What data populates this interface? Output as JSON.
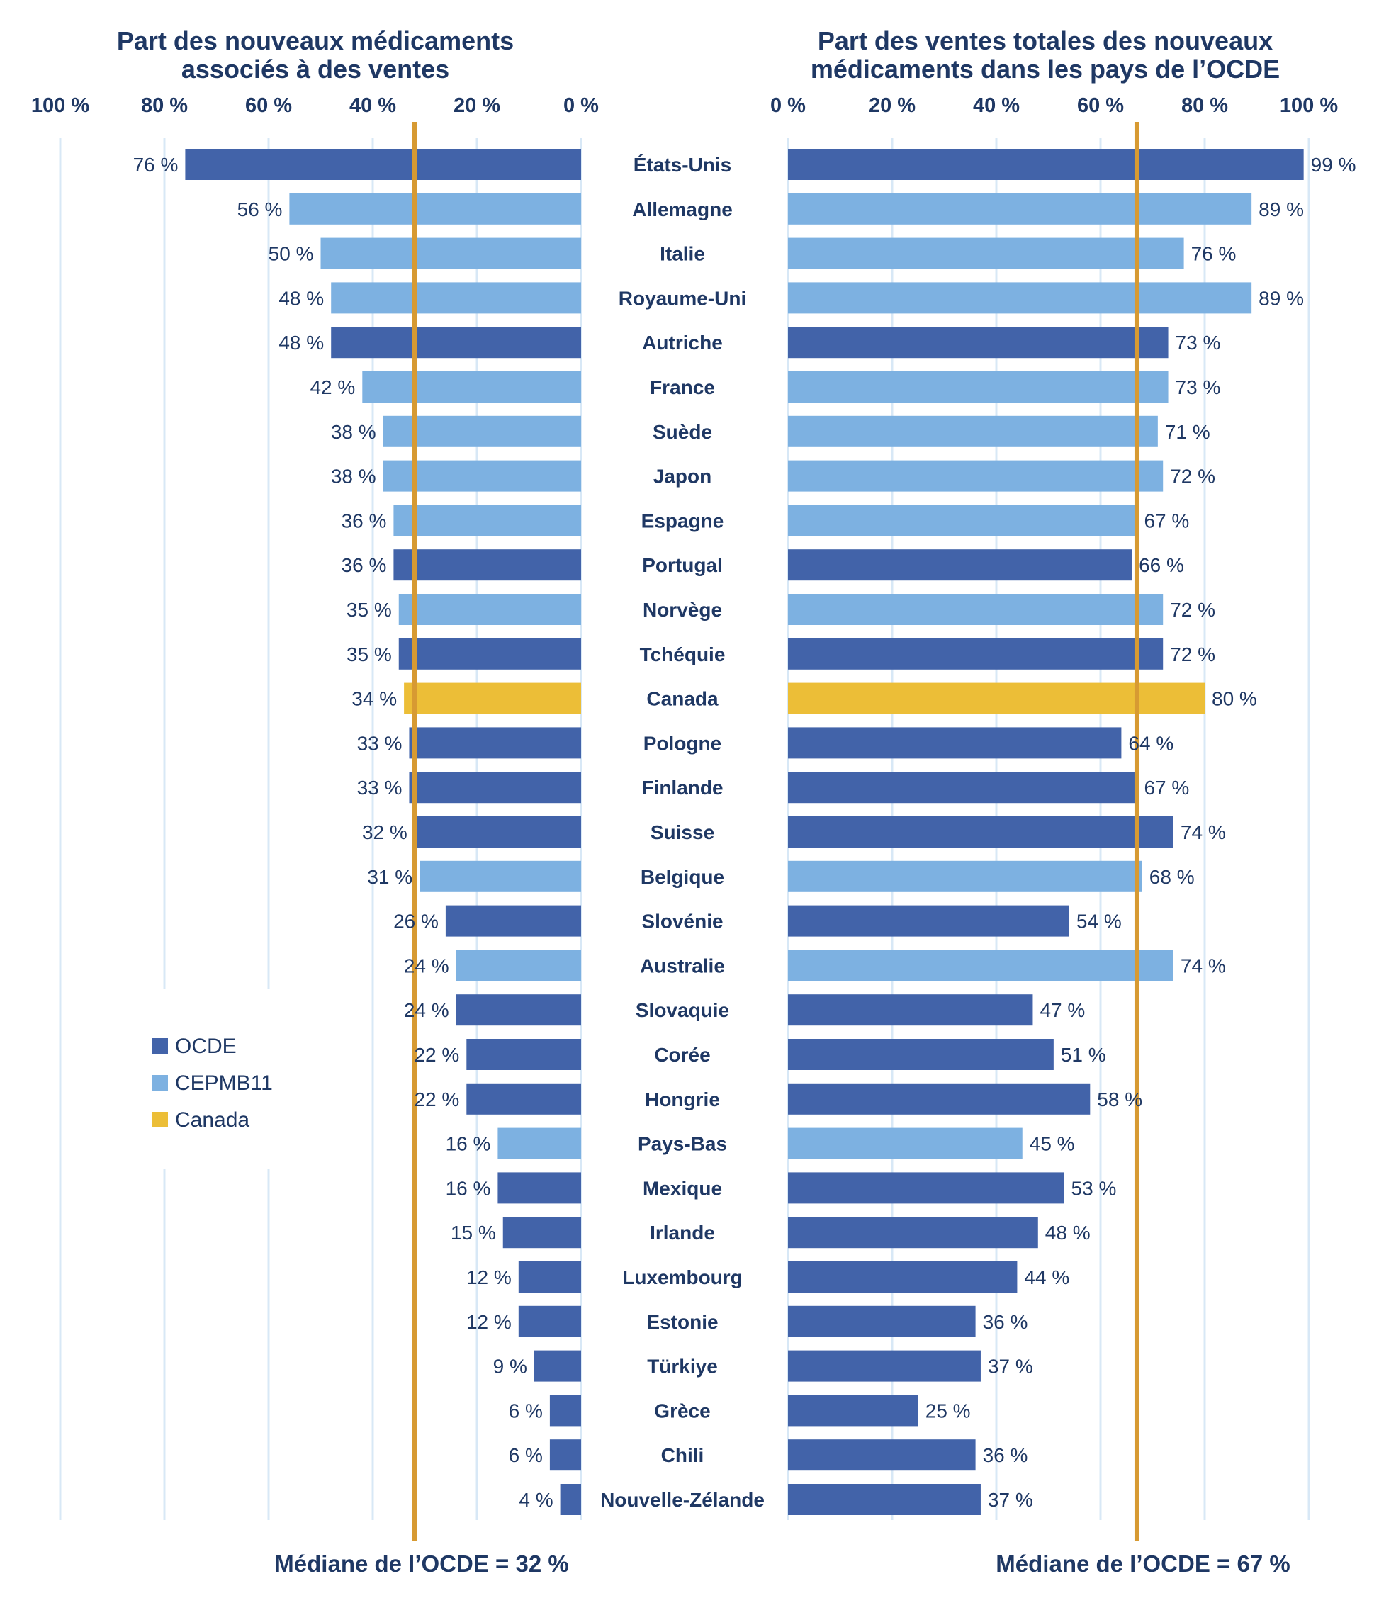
{
  "chart_data": [
    {
      "type": "bar",
      "orientation": "horizontal",
      "direction": "right-to-left",
      "title_lines": [
        "Part des nouveaux médicaments",
        "associés à des ventes"
      ],
      "xlim": [
        0,
        100
      ],
      "ticks": [
        {
          "value": 100,
          "label": "100 %"
        },
        {
          "value": 80,
          "label": "80 %"
        },
        {
          "value": 60,
          "label": "60 %"
        },
        {
          "value": 40,
          "label": "40 %"
        },
        {
          "value": 20,
          "label": "20 %"
        },
        {
          "value": 0,
          "label": "0 %"
        }
      ],
      "grid": true,
      "median": {
        "value": 32,
        "label": "Médiane de l’OCDE = 32 %"
      },
      "values": [
        76,
        56,
        50,
        48,
        48,
        42,
        38,
        38,
        36,
        36,
        35,
        35,
        34,
        33,
        33,
        32,
        31,
        26,
        24,
        24,
        22,
        22,
        16,
        16,
        15,
        12,
        12,
        9,
        6,
        6,
        4
      ],
      "value_labels": [
        "76 %",
        "56 %",
        "50 %",
        "48 %",
        "48 %",
        "42 %",
        "38 %",
        "38 %",
        "36 %",
        "36 %",
        "35 %",
        "35 %",
        "34 %",
        "33 %",
        "33 %",
        "32 %",
        "31 %",
        "26 %",
        "24 %",
        "24 %",
        "22 %",
        "22 %",
        "16 %",
        "16 %",
        "15 %",
        "12 %",
        "12 %",
        "9 %",
        "6 %",
        "6 %",
        "4 %"
      ]
    },
    {
      "type": "bar",
      "orientation": "horizontal",
      "direction": "left-to-right",
      "title_lines": [
        "Part des ventes totales des nouveaux",
        "médicaments dans les pays de l’OCDE"
      ],
      "xlim": [
        0,
        100
      ],
      "ticks": [
        {
          "value": 0,
          "label": "0 %"
        },
        {
          "value": 20,
          "label": "20 %"
        },
        {
          "value": 40,
          "label": "40 %"
        },
        {
          "value": 60,
          "label": "60 %"
        },
        {
          "value": 80,
          "label": "80 %"
        },
        {
          "value": 100,
          "label": "100 %"
        }
      ],
      "grid": true,
      "median": {
        "value": 67,
        "label": "Médiane de l’OCDE = 67 %"
      },
      "values": [
        99,
        89,
        76,
        89,
        73,
        73,
        71,
        72,
        67,
        66,
        72,
        72,
        80,
        64,
        67,
        74,
        68,
        54,
        74,
        47,
        51,
        58,
        45,
        53,
        48,
        44,
        36,
        37,
        25,
        36,
        37
      ],
      "value_labels": [
        "99 %",
        "89 %",
        "76 %",
        "89 %",
        "73 %",
        "73 %",
        "71 %",
        "72 %",
        "67 %",
        "66 %",
        "72 %",
        "72 %",
        "80 %",
        "64 %",
        "67 %",
        "74 %",
        "68 %",
        "54 %",
        "74 %",
        "47 %",
        "51 %",
        "58 %",
        "45 %",
        "53 %",
        "48 %",
        "44 %",
        "36 %",
        "37 %",
        "25 %",
        "36 %",
        "37 %"
      ]
    }
  ],
  "countries": [
    "États-Unis",
    "Allemagne",
    "Italie",
    "Royaume-Uni",
    "Autriche",
    "France",
    "Suède",
    "Japon",
    "Espagne",
    "Portugal",
    "Norvège",
    "Tchéquie",
    "Canada",
    "Pologne",
    "Finlande",
    "Suisse",
    "Belgique",
    "Slovénie",
    "Australie",
    "Slovaquie",
    "Corée",
    "Hongrie",
    "Pays-Bas",
    "Mexique",
    "Irlande",
    "Luxembourg",
    "Estonie",
    "Türkiye",
    "Grèce",
    "Chili",
    "Nouvelle-Zélande"
  ],
  "groups": [
    "ocde",
    "cepmb",
    "cepmb",
    "cepmb",
    "ocde",
    "cepmb",
    "cepmb",
    "cepmb",
    "cepmb",
    "ocde",
    "cepmb",
    "ocde",
    "canada",
    "ocde",
    "ocde",
    "ocde",
    "cepmb",
    "ocde",
    "cepmb",
    "ocde",
    "ocde",
    "ocde",
    "cepmb",
    "ocde",
    "ocde",
    "ocde",
    "ocde",
    "ocde",
    "ocde",
    "ocde",
    "ocde"
  ],
  "legend": {
    "placement": "left-lower",
    "items": [
      {
        "key": "ocde",
        "label": "OCDE"
      },
      {
        "key": "cepmb",
        "label": "CEPMB11"
      },
      {
        "key": "canada",
        "label": "Canada"
      }
    ]
  },
  "colors": {
    "ocde": "#4263a9",
    "cepmb": "#7db1e1",
    "canada": "#ecbe37",
    "median_line": "#d79a32",
    "grid": "#d8e8f6",
    "text": "#1f3864"
  }
}
